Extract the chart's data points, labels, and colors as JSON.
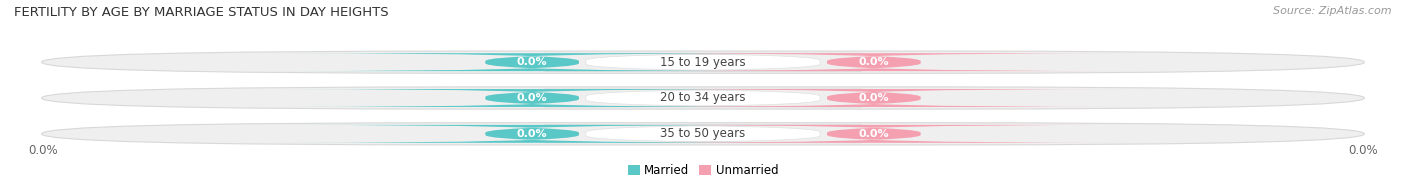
{
  "title": "FERTILITY BY AGE BY MARRIAGE STATUS IN DAY HEIGHTS",
  "source": "Source: ZipAtlas.com",
  "categories": [
    "15 to 19 years",
    "20 to 34 years",
    "35 to 50 years"
  ],
  "married_values": [
    0.0,
    0.0,
    0.0
  ],
  "unmarried_values": [
    0.0,
    0.0,
    0.0
  ],
  "married_color": "#5bc8c8",
  "unmarried_color": "#f4a0b0",
  "bar_bg_color": "#efefef",
  "bar_border_color": "#d8d8d8",
  "title_fontsize": 9.5,
  "source_fontsize": 8,
  "label_fontsize": 8.5,
  "value_label_fontsize": 8,
  "axis_label": "0.0%",
  "background_color": "#ffffff",
  "legend_married": "Married",
  "legend_unmarried": "Unmarried"
}
